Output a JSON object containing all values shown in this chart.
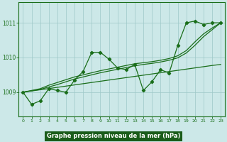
{
  "xlabel": "Graphe pression niveau de la mer (hPa)",
  "x_values": [
    0,
    1,
    2,
    3,
    4,
    5,
    6,
    7,
    8,
    9,
    10,
    11,
    12,
    13,
    14,
    15,
    16,
    17,
    18,
    19,
    20,
    21,
    22,
    23
  ],
  "main_line": [
    1009.0,
    1008.65,
    1008.75,
    1009.1,
    1009.05,
    1009.0,
    1009.35,
    1009.6,
    1010.15,
    1010.15,
    1009.95,
    1009.7,
    1009.65,
    1009.8,
    1009.05,
    1009.3,
    1009.65,
    1009.55,
    1010.35,
    1011.0,
    1011.05,
    1010.95,
    1011.0,
    1011.0
  ],
  "trend_line1": [
    1009.0,
    1009.035,
    1009.07,
    1009.105,
    1009.14,
    1009.175,
    1009.21,
    1009.245,
    1009.28,
    1009.315,
    1009.35,
    1009.385,
    1009.42,
    1009.455,
    1009.49,
    1009.525,
    1009.56,
    1009.595,
    1009.63,
    1009.665,
    1009.7,
    1009.735,
    1009.77,
    1009.8
  ],
  "trend_line2": [
    1009.0,
    1009.05,
    1009.1,
    1009.2,
    1009.28,
    1009.36,
    1009.44,
    1009.5,
    1009.56,
    1009.62,
    1009.67,
    1009.72,
    1009.77,
    1009.82,
    1009.85,
    1009.88,
    1009.92,
    1009.97,
    1010.05,
    1010.2,
    1010.45,
    1010.68,
    1010.85,
    1011.0
  ],
  "trend_line3": [
    1009.0,
    1009.04,
    1009.08,
    1009.15,
    1009.22,
    1009.3,
    1009.38,
    1009.44,
    1009.5,
    1009.56,
    1009.61,
    1009.66,
    1009.71,
    1009.76,
    1009.8,
    1009.83,
    1009.87,
    1009.92,
    1009.99,
    1010.13,
    1010.35,
    1010.6,
    1010.8,
    1011.0
  ],
  "ylim": [
    1008.3,
    1011.6
  ],
  "yticks": [
    1009,
    1010,
    1011
  ],
  "xticks": [
    0,
    1,
    2,
    3,
    4,
    5,
    6,
    7,
    8,
    9,
    10,
    11,
    12,
    13,
    14,
    15,
    16,
    17,
    18,
    19,
    20,
    21,
    22,
    23
  ],
  "line_color": "#1a6e1a",
  "bg_color": "#cce8e8",
  "grid_color": "#9dc8c8",
  "label_bg": "#1a5c1a",
  "label_fg": "#ffffff"
}
